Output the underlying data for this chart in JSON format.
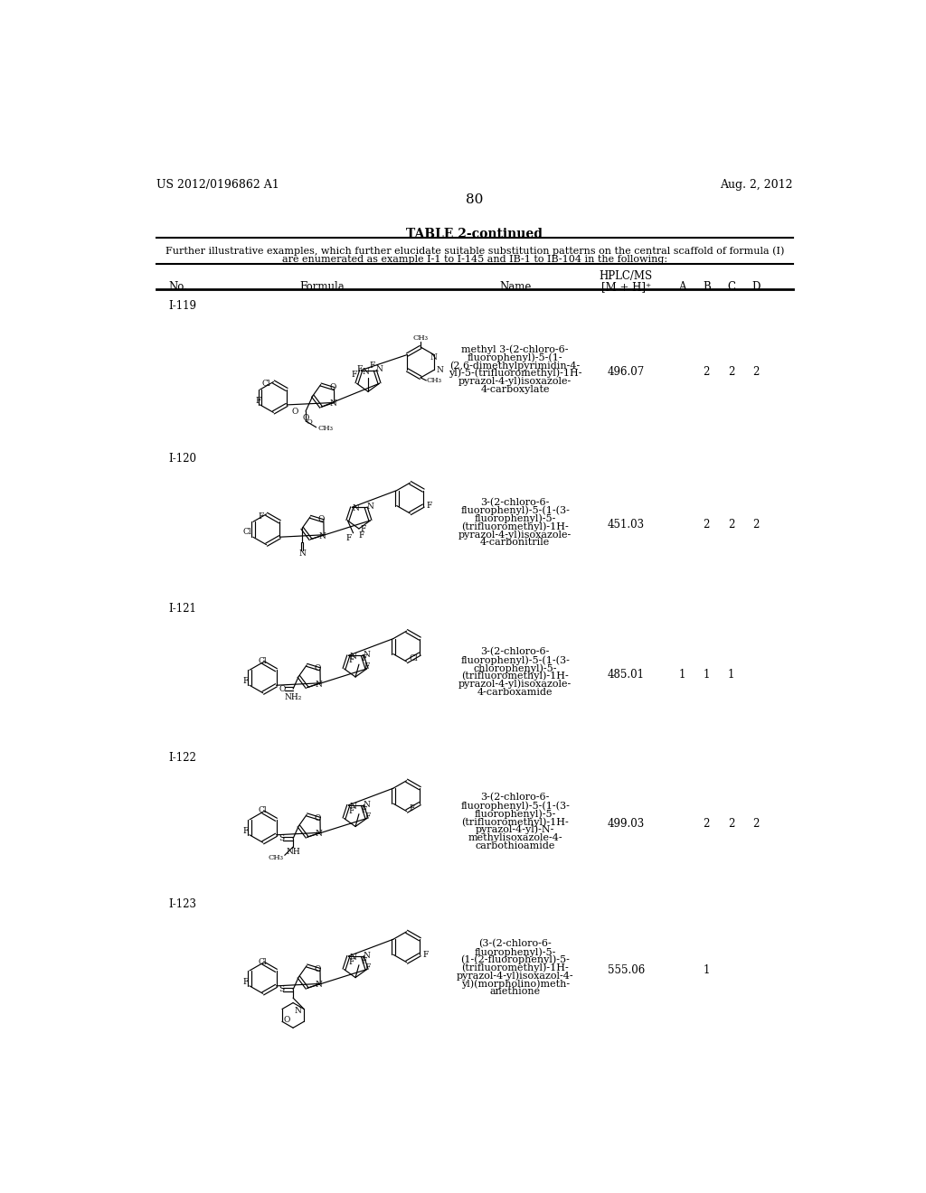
{
  "patent_number": "US 2012/0196862 A1",
  "date": "Aug. 2, 2012",
  "page_number": "80",
  "table_title": "TABLE 2-continued",
  "table_note_1": "Further illustrative examples, which further elucidate suitable substitution patterns on the central scaffold of formula (I)",
  "table_note_2": "are enumerated as example I-1 to I-145 and IB-1 to IB-104 in the following:",
  "rows": [
    {
      "no": "I-119",
      "name": "methyl 3-(2-chloro-6-\nfluorophenyl)-5-(1-\n(2,6-dimethylpyrimidin-4-\nyl)-5-(trifluoromethyl)-1H-\npyrazol-4-yl)isoxazole-\n4-carboxylate",
      "ms": "496.07",
      "A": "",
      "B": "2",
      "C": "2",
      "D": "2"
    },
    {
      "no": "I-120",
      "name": "3-(2-chloro-6-\nfluorophenyl)-5-(1-(3-\nfluorophenyl)-5-\n(trifluoromethyl)-1H-\npyrazol-4-yl)isoxazole-\n4-carbonitrile",
      "ms": "451.03",
      "A": "",
      "B": "2",
      "C": "2",
      "D": "2"
    },
    {
      "no": "I-121",
      "name": "3-(2-chloro-6-\nfluorophenyl)-5-(1-(3-\nchlorophenyl)-5-\n(trifluoromethyl)-1H-\npyrazol-4-yl)isoxazole-\n4-carboxamide",
      "ms": "485.01",
      "A": "1",
      "B": "1",
      "C": "1",
      "D": ""
    },
    {
      "no": "I-122",
      "name": "3-(2-chloro-6-\nfluorophenyl)-5-(1-(3-\nfluorophenyl)-5-\n(trifluoromethyl)-1H-\npyrazol-4-yl)-N-\nmethylisoxazole-4-\ncarbothioamide",
      "ms": "499.03",
      "A": "",
      "B": "2",
      "C": "2",
      "D": "2"
    },
    {
      "no": "I-123",
      "name": "(3-(2-chloro-6-\nfluorophenyl)-5-\n(1-(2-fluorophenyl)-5-\n(trifluoromethyl)-1H-\npyrazol-4-yl)isoxazol-4-\nyl)(morpholino)meth-\nanethione",
      "ms": "555.06",
      "A": "",
      "B": "1",
      "C": "",
      "D": ""
    }
  ],
  "bg_color": "#ffffff",
  "text_color": "#000000"
}
